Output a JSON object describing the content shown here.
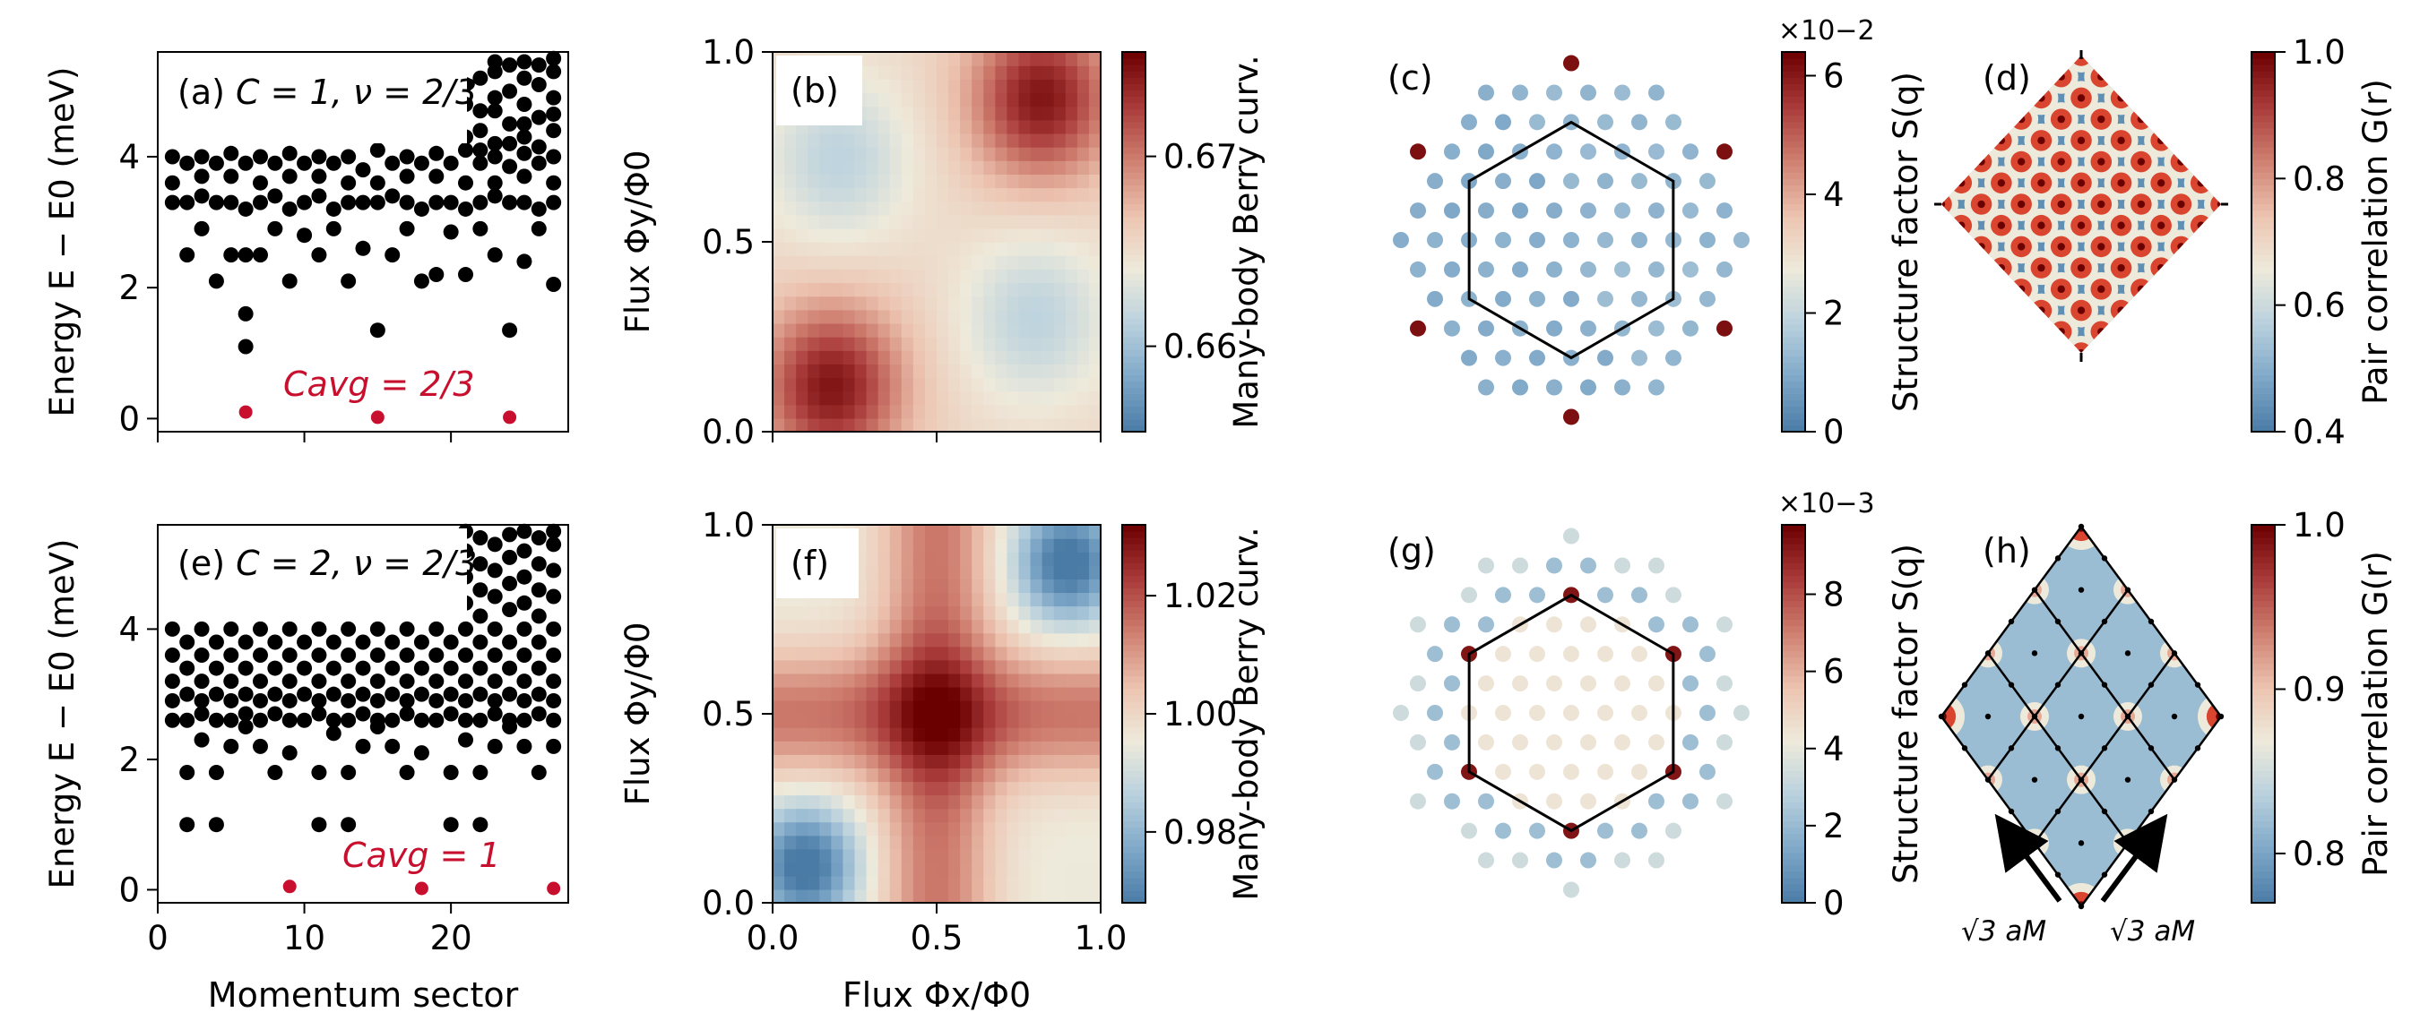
{
  "chart_data": [
    {
      "panel": "a",
      "type": "scatter",
      "label_prefix": "(a) ",
      "label_math": "C = 1, ν = 2/3",
      "ylabel": "Energy E − E0 (meV)",
      "xlabel": "",
      "xlim": [
        0,
        28
      ],
      "ylim": [
        -0.2,
        5.6
      ],
      "xticks": [
        0,
        10,
        20
      ],
      "yticks": [
        0,
        2,
        4
      ],
      "xtick_labels": [
        "",
        "",
        ""
      ],
      "annotation": "Cavg = 2/3",
      "annotation_pos": [
        13.7,
        0.45
      ],
      "ground_states": [
        [
          6,
          0.1
        ],
        [
          15,
          0.02
        ],
        [
          24,
          0.02
        ]
      ],
      "excited": [
        [
          6,
          1.1
        ],
        [
          6,
          1.6
        ],
        [
          15,
          1.35
        ],
        [
          24,
          1.35
        ],
        [
          4,
          2.1
        ],
        [
          13,
          2.1
        ],
        [
          9,
          2.1
        ],
        [
          19,
          2.2
        ],
        [
          21,
          2.2
        ],
        [
          18,
          2.1
        ],
        [
          27,
          2.05
        ],
        [
          2,
          2.5
        ],
        [
          5,
          2.5
        ],
        [
          6,
          2.5
        ],
        [
          7,
          2.5
        ],
        [
          11,
          2.5
        ],
        [
          14,
          2.6
        ],
        [
          16,
          2.5
        ],
        [
          23,
          2.5
        ],
        [
          25,
          2.4
        ],
        [
          3,
          2.9
        ],
        [
          8,
          2.9
        ],
        [
          10,
          2.8
        ],
        [
          12,
          2.9
        ],
        [
          17,
          2.9
        ],
        [
          20,
          2.85
        ],
        [
          22,
          2.9
        ],
        [
          26,
          2.9
        ],
        [
          1,
          3.3
        ],
        [
          2,
          3.3
        ],
        [
          3,
          3.4
        ],
        [
          4,
          3.3
        ],
        [
          5,
          3.3
        ],
        [
          6,
          3.2
        ],
        [
          7,
          3.3
        ],
        [
          8,
          3.4
        ],
        [
          9,
          3.2
        ],
        [
          10,
          3.3
        ],
        [
          11,
          3.4
        ],
        [
          12,
          3.2
        ],
        [
          13,
          3.3
        ],
        [
          14,
          3.3
        ],
        [
          15,
          3.3
        ],
        [
          16,
          3.4
        ],
        [
          17,
          3.3
        ],
        [
          18,
          3.2
        ],
        [
          19,
          3.3
        ],
        [
          20,
          3.3
        ],
        [
          21,
          3.2
        ],
        [
          22,
          3.3
        ],
        [
          23,
          3.4
        ],
        [
          24,
          3.3
        ],
        [
          25,
          3.3
        ],
        [
          26,
          3.2
        ],
        [
          27,
          3.3
        ],
        [
          1,
          3.6
        ],
        [
          3,
          3.7
        ],
        [
          5,
          3.7
        ],
        [
          7,
          3.6
        ],
        [
          9,
          3.7
        ],
        [
          11,
          3.7
        ],
        [
          13,
          3.6
        ],
        [
          15,
          3.6
        ],
        [
          17,
          3.7
        ],
        [
          19,
          3.7
        ],
        [
          21,
          3.6
        ],
        [
          23,
          3.6
        ],
        [
          25,
          3.7
        ],
        [
          27,
          3.6
        ],
        [
          2,
          3.9
        ],
        [
          4,
          3.9
        ],
        [
          6,
          3.9
        ],
        [
          8,
          3.9
        ],
        [
          10,
          3.9
        ],
        [
          12,
          3.9
        ],
        [
          14,
          3.8
        ],
        [
          16,
          3.9
        ],
        [
          18,
          3.9
        ],
        [
          20,
          3.9
        ],
        [
          22,
          3.9
        ],
        [
          24,
          3.85
        ],
        [
          26,
          3.9
        ],
        [
          1,
          4.0
        ],
        [
          3,
          4.0
        ],
        [
          5,
          4.05
        ],
        [
          7,
          4.0
        ],
        [
          9,
          4.05
        ],
        [
          11,
          4.0
        ],
        [
          13,
          4.0
        ],
        [
          15,
          4.1
        ],
        [
          17,
          4.0
        ],
        [
          19,
          4.05
        ],
        [
          21,
          4.1
        ],
        [
          23,
          4.0
        ],
        [
          25,
          4.05
        ],
        [
          27,
          4.0
        ],
        [
          21,
          4.3
        ],
        [
          22,
          4.4
        ],
        [
          23,
          4.2
        ],
        [
          24,
          4.5
        ],
        [
          25,
          4.3
        ],
        [
          26,
          4.6
        ],
        [
          27,
          4.4
        ],
        [
          21,
          4.8
        ],
        [
          22,
          4.7
        ],
        [
          23,
          4.9
        ],
        [
          24,
          5.0
        ],
        [
          25,
          4.8
        ],
        [
          26,
          5.1
        ],
        [
          27,
          4.9
        ],
        [
          22,
          5.2
        ],
        [
          23,
          5.3
        ],
        [
          24,
          5.4
        ],
        [
          25,
          5.2
        ],
        [
          26,
          5.4
        ],
        [
          27,
          5.3
        ],
        [
          21,
          5.1
        ],
        [
          25,
          5.45
        ],
        [
          23,
          5.45
        ],
        [
          27,
          5.5
        ],
        [
          22,
          4.1
        ],
        [
          24,
          4.2
        ],
        [
          26,
          4.15
        ],
        [
          23,
          4.7
        ],
        [
          25,
          4.5
        ],
        [
          27,
          4.65
        ]
      ]
    },
    {
      "panel": "e",
      "type": "scatter",
      "label_prefix": "(e) ",
      "label_math": "C = 2, ν = 2/3",
      "ylabel": "Energy E − E0 (meV)",
      "xlabel": "Momentum sector",
      "xlim": [
        0,
        28
      ],
      "ylim": [
        -0.2,
        5.6
      ],
      "xticks": [
        0,
        10,
        20
      ],
      "yticks": [
        0,
        2,
        4
      ],
      "xtick_labels": [
        "0",
        "10",
        "20"
      ],
      "annotation": "Cavg = 1",
      "annotation_pos": [
        13.4,
        0.35
      ],
      "ground_states": [
        [
          9,
          0.05
        ],
        [
          18,
          0.02
        ],
        [
          27,
          0.02
        ]
      ],
      "excited": [
        [
          2,
          1.0
        ],
        [
          4,
          1.0
        ],
        [
          11,
          1.0
        ],
        [
          13,
          1.0
        ],
        [
          20,
          1.0
        ],
        [
          22,
          1.0
        ],
        [
          2,
          1.8
        ],
        [
          4,
          1.8
        ],
        [
          11,
          1.8
        ],
        [
          13,
          1.8
        ],
        [
          20,
          1.8
        ],
        [
          22,
          1.8
        ],
        [
          8,
          1.8
        ],
        [
          17,
          1.8
        ],
        [
          26,
          1.8
        ],
        [
          5,
          2.2
        ],
        [
          14,
          2.2
        ],
        [
          23,
          2.2
        ],
        [
          7,
          2.2
        ],
        [
          16,
          2.2
        ],
        [
          25,
          2.2
        ],
        [
          9,
          2.1
        ],
        [
          18,
          2.1
        ],
        [
          27,
          2.2
        ],
        [
          3,
          2.3
        ],
        [
          12,
          2.4
        ],
        [
          21,
          2.3
        ],
        [
          6,
          2.5
        ],
        [
          15,
          2.5
        ],
        [
          24,
          2.5
        ],
        [
          1,
          2.6
        ],
        [
          2,
          2.6
        ],
        [
          3,
          2.7
        ],
        [
          4,
          2.6
        ],
        [
          5,
          2.6
        ],
        [
          6,
          2.7
        ],
        [
          7,
          2.6
        ],
        [
          8,
          2.7
        ],
        [
          9,
          2.6
        ],
        [
          10,
          2.6
        ],
        [
          11,
          2.7
        ],
        [
          12,
          2.6
        ],
        [
          13,
          2.6
        ],
        [
          14,
          2.7
        ],
        [
          15,
          2.6
        ],
        [
          16,
          2.6
        ],
        [
          17,
          2.7
        ],
        [
          18,
          2.6
        ],
        [
          19,
          2.6
        ],
        [
          20,
          2.7
        ],
        [
          21,
          2.6
        ],
        [
          22,
          2.6
        ],
        [
          23,
          2.7
        ],
        [
          24,
          2.6
        ],
        [
          25,
          2.6
        ],
        [
          26,
          2.7
        ],
        [
          27,
          2.6
        ],
        [
          1,
          2.9
        ],
        [
          2,
          3.0
        ],
        [
          3,
          2.9
        ],
        [
          4,
          3.0
        ],
        [
          5,
          2.9
        ],
        [
          6,
          3.0
        ],
        [
          7,
          2.9
        ],
        [
          8,
          3.0
        ],
        [
          9,
          2.9
        ],
        [
          10,
          3.0
        ],
        [
          11,
          2.9
        ],
        [
          12,
          3.0
        ],
        [
          13,
          2.9
        ],
        [
          14,
          3.0
        ],
        [
          15,
          2.9
        ],
        [
          16,
          3.0
        ],
        [
          17,
          2.9
        ],
        [
          18,
          3.0
        ],
        [
          19,
          2.9
        ],
        [
          20,
          3.0
        ],
        [
          21,
          2.9
        ],
        [
          22,
          3.0
        ],
        [
          23,
          2.9
        ],
        [
          24,
          3.0
        ],
        [
          25,
          2.9
        ],
        [
          26,
          3.0
        ],
        [
          27,
          2.9
        ],
        [
          1,
          3.2
        ],
        [
          3,
          3.2
        ],
        [
          5,
          3.2
        ],
        [
          7,
          3.2
        ],
        [
          9,
          3.2
        ],
        [
          11,
          3.2
        ],
        [
          13,
          3.2
        ],
        [
          15,
          3.2
        ],
        [
          17,
          3.2
        ],
        [
          19,
          3.2
        ],
        [
          21,
          3.2
        ],
        [
          23,
          3.2
        ],
        [
          25,
          3.2
        ],
        [
          27,
          3.2
        ],
        [
          2,
          3.4
        ],
        [
          4,
          3.4
        ],
        [
          6,
          3.4
        ],
        [
          8,
          3.4
        ],
        [
          10,
          3.4
        ],
        [
          12,
          3.4
        ],
        [
          14,
          3.4
        ],
        [
          16,
          3.4
        ],
        [
          18,
          3.4
        ],
        [
          20,
          3.4
        ],
        [
          22,
          3.4
        ],
        [
          24,
          3.4
        ],
        [
          26,
          3.4
        ],
        [
          1,
          3.6
        ],
        [
          3,
          3.6
        ],
        [
          5,
          3.6
        ],
        [
          7,
          3.6
        ],
        [
          9,
          3.6
        ],
        [
          11,
          3.6
        ],
        [
          13,
          3.6
        ],
        [
          15,
          3.6
        ],
        [
          17,
          3.6
        ],
        [
          19,
          3.6
        ],
        [
          21,
          3.6
        ],
        [
          23,
          3.6
        ],
        [
          25,
          3.6
        ],
        [
          27,
          3.6
        ],
        [
          2,
          3.8
        ],
        [
          4,
          3.8
        ],
        [
          6,
          3.8
        ],
        [
          8,
          3.8
        ],
        [
          10,
          3.8
        ],
        [
          12,
          3.8
        ],
        [
          14,
          3.8
        ],
        [
          16,
          3.8
        ],
        [
          18,
          3.8
        ],
        [
          20,
          3.8
        ],
        [
          22,
          3.8
        ],
        [
          24,
          3.8
        ],
        [
          26,
          3.8
        ],
        [
          1,
          4.0
        ],
        [
          3,
          4.0
        ],
        [
          5,
          4.0
        ],
        [
          7,
          4.0
        ],
        [
          9,
          4.0
        ],
        [
          11,
          4.0
        ],
        [
          13,
          4.0
        ],
        [
          15,
          4.0
        ],
        [
          17,
          4.0
        ],
        [
          19,
          4.0
        ],
        [
          21,
          4.0
        ],
        [
          23,
          4.0
        ],
        [
          25,
          4.0
        ],
        [
          27,
          4.0
        ],
        [
          22,
          4.2
        ],
        [
          24,
          4.3
        ],
        [
          26,
          4.2
        ],
        [
          21,
          4.4
        ],
        [
          23,
          4.5
        ],
        [
          25,
          4.4
        ],
        [
          27,
          4.5
        ],
        [
          22,
          4.6
        ],
        [
          24,
          4.7
        ],
        [
          26,
          4.6
        ],
        [
          21,
          4.8
        ],
        [
          23,
          4.9
        ],
        [
          25,
          4.8
        ],
        [
          27,
          4.9
        ],
        [
          22,
          5.0
        ],
        [
          24,
          5.1
        ],
        [
          26,
          5.0
        ],
        [
          21,
          5.2
        ],
        [
          23,
          5.3
        ],
        [
          25,
          5.2
        ],
        [
          27,
          5.3
        ],
        [
          22,
          5.4
        ],
        [
          24,
          5.45
        ],
        [
          26,
          5.4
        ],
        [
          21,
          5.5
        ],
        [
          25,
          5.5
        ],
        [
          27,
          5.5
        ]
      ]
    },
    {
      "panel": "b",
      "type": "heatmap",
      "label": "(b)",
      "ylabel": "Flux Φy/Φ0",
      "xlabel": "",
      "xlim": [
        0,
        1
      ],
      "ylim": [
        0,
        1
      ],
      "xticks": [
        0,
        0.5,
        1
      ],
      "yticks": [
        0,
        0.5,
        1
      ],
      "xtick_labels": [
        "",
        "",
        ""
      ],
      "ytick_labels": [
        "0.0",
        "0.5",
        "1.0"
      ],
      "grid_n": 28,
      "field": "b",
      "vmin": 0.6555,
      "vmax": 0.6755,
      "cbar_ticks": [
        0.66,
        0.67
      ],
      "cbar_tick_labels": [
        "0.66",
        "0.67"
      ],
      "cbar_label": "Many-body Berry curv."
    },
    {
      "panel": "f",
      "type": "heatmap",
      "label": "(f)",
      "ylabel": "Flux Φy/Φ0",
      "xlabel": "Flux Φx/Φ0",
      "xlim": [
        0,
        1
      ],
      "ylim": [
        0,
        1
      ],
      "xticks": [
        0,
        0.5,
        1
      ],
      "yticks": [
        0,
        0.5,
        1
      ],
      "xtick_labels": [
        "0.0",
        "0.5",
        "1.0"
      ],
      "ytick_labels": [
        "0.0",
        "0.5",
        "1.0"
      ],
      "grid_n": 28,
      "field": "f",
      "vmin": 0.968,
      "vmax": 1.032,
      "cbar_ticks": [
        0.98,
        1.0,
        1.02
      ],
      "cbar_tick_labels": [
        "0.98",
        "1.00",
        "1.02"
      ],
      "cbar_label": "Many-body Berry curv."
    },
    {
      "panel": "c",
      "type": "scatter",
      "subtype": "structure_factor",
      "label": "(c)",
      "rmax": 5.2,
      "peaks": "outer",
      "vmin": 0,
      "vmax": 6.4,
      "cbar_ticks": [
        0,
        2,
        4,
        6
      ],
      "cbar_tick_labels": [
        "0",
        "2",
        "4",
        "6"
      ],
      "cbar_exponent": "×10−2",
      "cbar_label": "Structure factor S(q)"
    },
    {
      "panel": "g",
      "type": "scatter",
      "subtype": "structure_factor",
      "label": "(g)",
      "rmax": 5.2,
      "peaks": "inner",
      "vmin": 0,
      "vmax": 9.8,
      "cbar_ticks": [
        0,
        2,
        4,
        6,
        8
      ],
      "cbar_tick_labels": [
        "0",
        "2",
        "4",
        "6",
        "8"
      ],
      "cbar_exponent": "×10−3",
      "cbar_label": "Structure factor S(q)"
    },
    {
      "panel": "d",
      "type": "heatmap",
      "subtype": "pair_correlation",
      "label": "(d)",
      "lattice": "fine",
      "vmin": 0.4,
      "vmax": 1.0,
      "cbar_ticks": [
        0.4,
        0.6,
        0.8,
        1.0
      ],
      "cbar_tick_labels": [
        "0.4",
        "0.6",
        "0.8",
        "1.0"
      ],
      "cbar_label": "Pair correlation G(r)"
    },
    {
      "panel": "h",
      "type": "heatmap",
      "subtype": "pair_correlation",
      "label": "(h)",
      "lattice": "coarse",
      "vmin": 0.77,
      "vmax": 1.0,
      "cbar_ticks": [
        0.8,
        0.9,
        1.0
      ],
      "cbar_tick_labels": [
        "0.8",
        "0.9",
        "1.0"
      ],
      "cbar_label": "Pair correlation G(r)",
      "arrow_labels": [
        "√3 aM",
        "√3 aM"
      ]
    }
  ],
  "colors": {
    "points": "#000000",
    "ground": "#c8102e",
    "cmap": [
      "#4a7ba6",
      "#7fa8c8",
      "#b9d1de",
      "#eeeadb",
      "#ecc3b0",
      "#cf7f70",
      "#a93a3a",
      "#6b0000"
    ]
  }
}
